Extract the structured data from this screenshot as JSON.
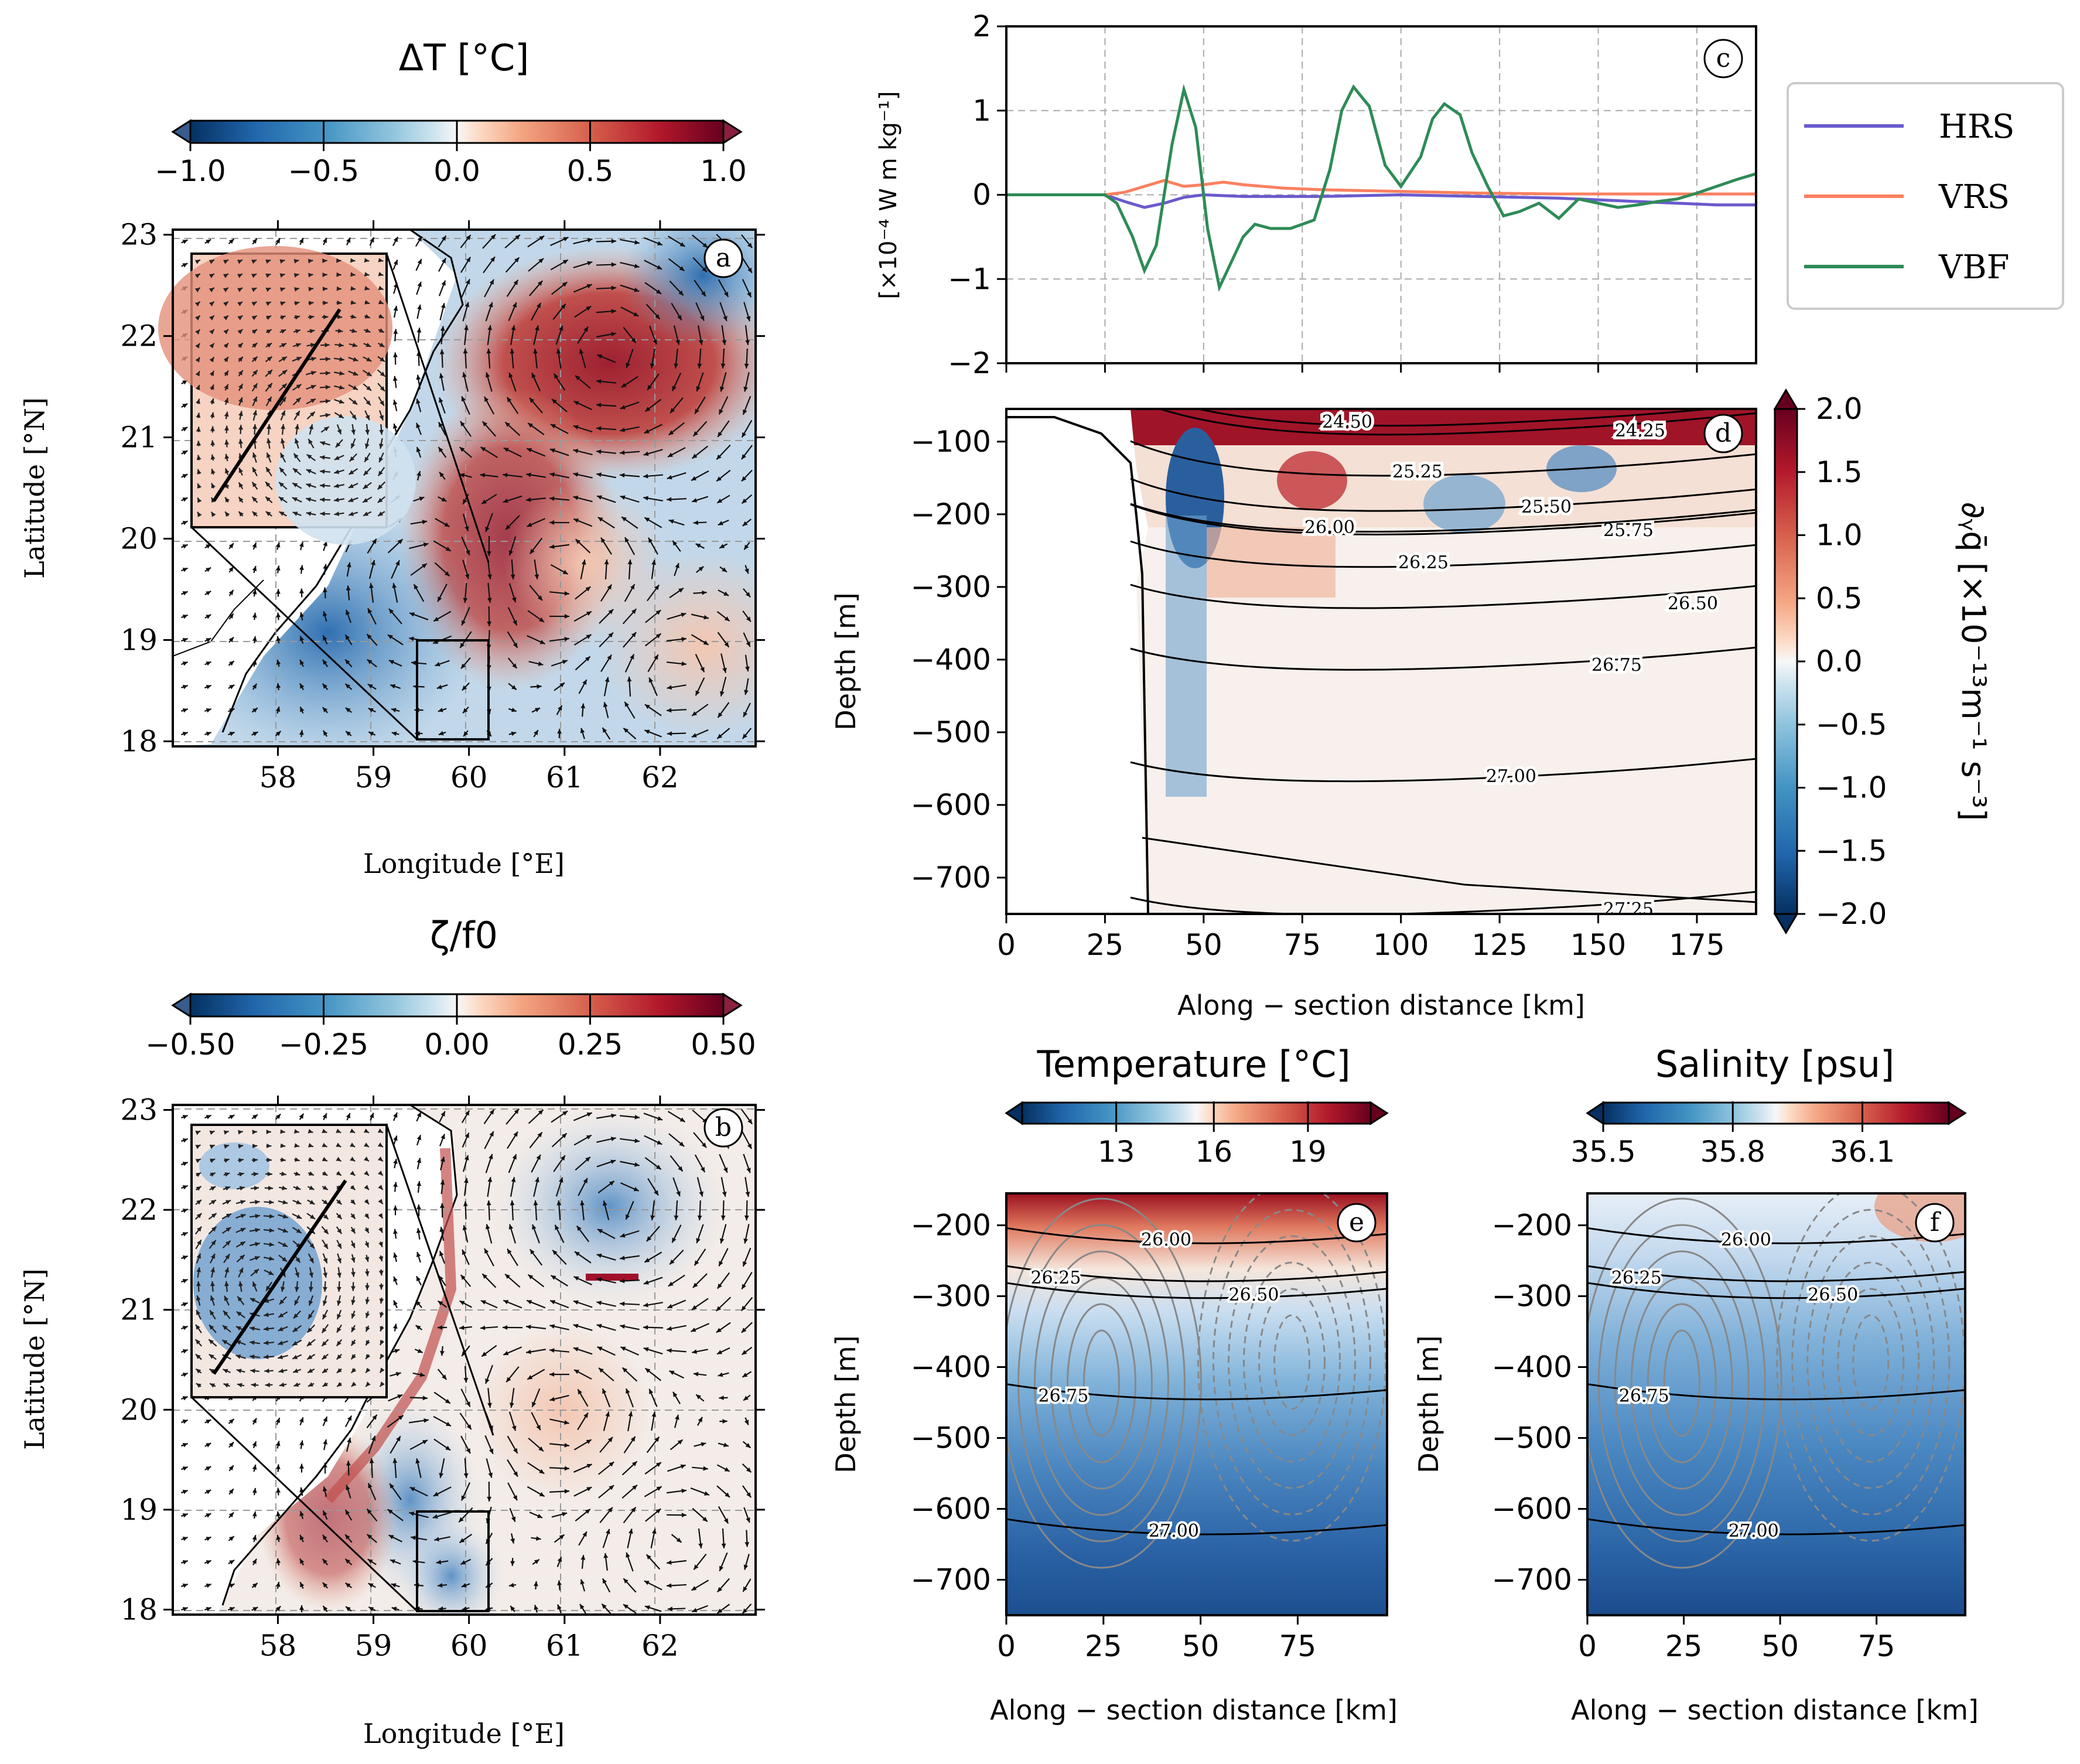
{
  "chart_data": [
    {
      "id": "a",
      "type": "heatmap",
      "panel_label": "a",
      "title": "ΔT [°C]",
      "xlabel": "Longitude [°E]",
      "ylabel": "Latitude [°N]",
      "xlim": [
        56.9,
        63.0
      ],
      "ylim": [
        17.95,
        23.05
      ],
      "xticks": [
        58,
        59,
        60,
        61,
        62
      ],
      "yticks": [
        18,
        19,
        20,
        21,
        22,
        23
      ],
      "colorbar": {
        "ticks": [
          "−1.0",
          "−0.5",
          "0.0",
          "0.5",
          "1.0"
        ],
        "vmin": -1.0,
        "vmax": 1.0,
        "cmap": "RdBu_r"
      },
      "grid": true,
      "annotations": [
        "inset zoom of box 59.5–60.3°E, 18.0–19.0°N",
        "velocity vectors",
        "section line"
      ]
    },
    {
      "id": "b",
      "type": "heatmap",
      "panel_label": "b",
      "title": "ζ/f0",
      "xlabel": "Longitude [°E]",
      "ylabel": "Latitude [°N]",
      "xlim": [
        56.9,
        63.0
      ],
      "ylim": [
        17.95,
        23.05
      ],
      "xticks": [
        58,
        59,
        60,
        61,
        62
      ],
      "yticks": [
        18,
        19,
        20,
        21,
        22,
        23
      ],
      "colorbar": {
        "ticks": [
          "−0.50",
          "−0.25",
          "0.00",
          "0.25",
          "0.50"
        ],
        "vmin": -0.5,
        "vmax": 0.5,
        "cmap": "RdBu_r"
      },
      "grid": true
    },
    {
      "id": "c",
      "type": "line",
      "panel_label": "c",
      "xlabel": "",
      "ylabel": "[×10⁻⁴ W m kg⁻¹]",
      "xlim": [
        0,
        190
      ],
      "ylim": [
        -2,
        2
      ],
      "yticks": [
        -2,
        -1,
        0,
        1,
        2
      ],
      "grid": true,
      "legend_position": "outside-right",
      "series": [
        {
          "name": "HRS",
          "color": "#6a5acd",
          "x": [
            0,
            25,
            30,
            35,
            40,
            45,
            50,
            60,
            80,
            100,
            120,
            140,
            150,
            160,
            170,
            180,
            190
          ],
          "y": [
            0,
            0,
            -0.08,
            -0.15,
            -0.1,
            -0.03,
            0,
            -0.02,
            -0.02,
            0,
            -0.02,
            -0.04,
            -0.06,
            -0.08,
            -0.1,
            -0.12,
            -0.12
          ]
        },
        {
          "name": "VRS",
          "color": "#fa8060",
          "x": [
            0,
            25,
            30,
            35,
            40,
            45,
            50,
            55,
            60,
            70,
            80,
            100,
            120,
            140,
            160,
            190
          ],
          "y": [
            0,
            0,
            0.03,
            0.1,
            0.17,
            0.1,
            0.12,
            0.15,
            0.12,
            0.08,
            0.06,
            0.04,
            0.02,
            0.01,
            0.01,
            0.01
          ]
        },
        {
          "name": "VBF",
          "color": "#2e8b57",
          "x": [
            0,
            25,
            28,
            32,
            35,
            38,
            42,
            45,
            48,
            51,
            54,
            57,
            60,
            63,
            67,
            72,
            78,
            82,
            85,
            88,
            92,
            96,
            100,
            105,
            108,
            111,
            115,
            118,
            122,
            126,
            130,
            135,
            140,
            145,
            150,
            155,
            160,
            165,
            170,
            175,
            180,
            185,
            190
          ],
          "y": [
            0,
            0,
            -0.1,
            -0.5,
            -0.9,
            -0.6,
            0.6,
            1.25,
            0.8,
            -0.4,
            -1.1,
            -0.8,
            -0.5,
            -0.35,
            -0.4,
            -0.4,
            -0.3,
            0.3,
            1.0,
            1.28,
            1.05,
            0.35,
            0.1,
            0.45,
            0.9,
            1.08,
            0.95,
            0.5,
            0.1,
            -0.25,
            -0.2,
            -0.1,
            -0.28,
            -0.05,
            -0.1,
            -0.15,
            -0.12,
            -0.08,
            -0.05,
            0.02,
            0.1,
            0.18,
            0.25
          ]
        }
      ]
    },
    {
      "id": "d",
      "type": "heatmap",
      "panel_label": "d",
      "xlabel": "Along − section distance [km]",
      "ylabel": "Depth [m]",
      "xlim": [
        0,
        190
      ],
      "ylim": [
        -750,
        -55
      ],
      "xticks": [
        0,
        25,
        50,
        75,
        100,
        125,
        150,
        175
      ],
      "yticks": [
        -100,
        -200,
        -300,
        -400,
        -500,
        -600,
        -700
      ],
      "colorbar": {
        "label": "∂ᵧq̄ [×10⁻¹³m⁻¹ s⁻³]",
        "ticks": [
          "−2.0",
          "−1.5",
          "−1.0",
          "−0.5",
          "0.0",
          "0.5",
          "1.0",
          "1.5",
          "2.0"
        ],
        "vmin": -2.0,
        "vmax": 2.0,
        "cmap": "RdBu_r"
      },
      "contour_labels": [
        "24.50",
        "24.25",
        "25.25",
        "25.50",
        "25.75",
        "26.00",
        "26.25",
        "26.50",
        "26.75",
        "27.00",
        "27.25"
      ]
    },
    {
      "id": "e",
      "type": "heatmap",
      "panel_label": "e",
      "title": "Temperature [°C]",
      "xlabel": "Along − section distance [km]",
      "ylabel": "Depth [m]",
      "xlim": [
        0,
        98
      ],
      "ylim": [
        -750,
        -155
      ],
      "xticks": [
        0,
        25,
        50,
        75
      ],
      "yticks": [
        -200,
        -300,
        -400,
        -500,
        -600,
        -700
      ],
      "colorbar": {
        "ticks": [
          "13",
          "16",
          "19"
        ],
        "vmin": 10,
        "vmax": 21,
        "cmap": "RdBu_r"
      },
      "contour_labels": [
        "26.00",
        "26.25",
        "26.50",
        "26.75",
        "27.00"
      ]
    },
    {
      "id": "f",
      "type": "heatmap",
      "panel_label": "f",
      "title": "Salinity [psu]",
      "xlabel": "Along − section distance [km]",
      "ylabel": "Depth [m]",
      "xlim": [
        0,
        98
      ],
      "ylim": [
        -750,
        -155
      ],
      "xticks": [
        0,
        25,
        50,
        75
      ],
      "yticks": [
        -200,
        -300,
        -400,
        -500,
        -600,
        -700
      ],
      "colorbar": {
        "ticks": [
          "35.5",
          "35.8",
          "36.1"
        ],
        "vmin": 35.5,
        "vmax": 36.3,
        "cmap": "RdBu_r"
      },
      "contour_labels": [
        "26.00",
        "26.25",
        "26.50",
        "26.75",
        "27.00"
      ]
    }
  ]
}
